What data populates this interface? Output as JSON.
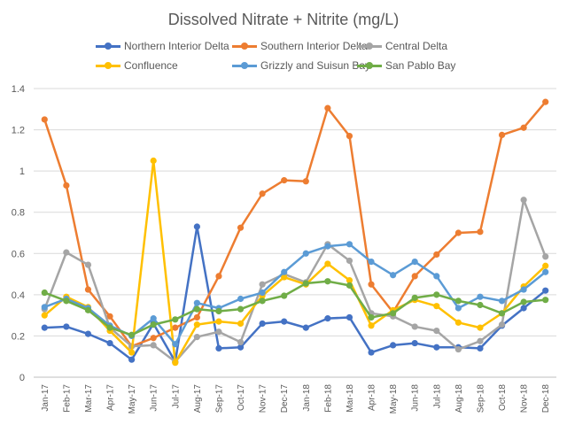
{
  "chart_data": {
    "type": "line",
    "title": "Dissolved Nitrate + Nitrite (mg/L)",
    "xlabel": "",
    "ylabel": "",
    "ylim": [
      0,
      1.4
    ],
    "yticks": [
      "0",
      "0.2",
      "0.4",
      "0.6",
      "0.8",
      "1",
      "1.2",
      "1.4"
    ],
    "grid": "horizontal",
    "legend_position": "top",
    "categories": [
      "Jan-17",
      "Feb-17",
      "Mar-17",
      "Apr-17",
      "May-17",
      "Jun-17",
      "Jul-17",
      "Aug-17",
      "Sep-17",
      "Oct-17",
      "Nov-17",
      "Dec-17",
      "Jan-18",
      "Feb-18",
      "Mar-18",
      "Apr-18",
      "May-18",
      "Jun-18",
      "Jul-18",
      "Aug-18",
      "Sep-18",
      "Oct-18",
      "Nov-18",
      "Dec-18"
    ],
    "series": [
      {
        "name": "Northern Interior Delta",
        "color": "#4472C4",
        "values": [
          0.24,
          0.245,
          0.21,
          0.165,
          0.085,
          0.26,
          0.075,
          0.73,
          0.14,
          0.145,
          0.26,
          0.27,
          0.24,
          0.285,
          0.29,
          0.12,
          0.155,
          0.165,
          0.145,
          0.145,
          0.14,
          0.25,
          0.335,
          0.42
        ]
      },
      {
        "name": "Southern Interior Delta",
        "color": "#ED7D31",
        "values": [
          1.25,
          0.93,
          0.425,
          0.295,
          0.15,
          0.19,
          0.24,
          0.29,
          0.49,
          0.725,
          0.89,
          0.955,
          0.95,
          1.305,
          1.17,
          0.45,
          0.315,
          0.49,
          0.595,
          0.7,
          0.705,
          1.175,
          1.21,
          1.335
        ]
      },
      {
        "name": "Central Delta",
        "color": "#A5A5A5",
        "values": [
          0.33,
          0.605,
          0.545,
          0.24,
          0.15,
          0.155,
          0.075,
          0.195,
          0.22,
          0.17,
          0.45,
          0.5,
          0.46,
          0.645,
          0.565,
          0.31,
          0.295,
          0.245,
          0.225,
          0.135,
          0.175,
          0.255,
          0.86,
          0.585
        ]
      },
      {
        "name": "Confluence",
        "color": "#FFC000",
        "values": [
          0.3,
          0.39,
          0.34,
          0.225,
          0.12,
          1.05,
          0.07,
          0.255,
          0.27,
          0.26,
          0.395,
          0.485,
          0.45,
          0.55,
          0.47,
          0.25,
          0.325,
          0.375,
          0.345,
          0.265,
          0.24,
          0.31,
          0.44,
          0.54
        ]
      },
      {
        "name": "Grizzly and Suisun Bay",
        "color": "#5B9BD5",
        "values": [
          0.34,
          0.38,
          0.335,
          0.25,
          0.2,
          0.285,
          0.16,
          0.36,
          0.335,
          0.38,
          0.41,
          0.51,
          0.6,
          0.635,
          0.645,
          0.56,
          0.495,
          0.56,
          0.49,
          0.335,
          0.39,
          0.37,
          0.425,
          0.51
        ]
      },
      {
        "name": "San Pablo Bay",
        "color": "#70AD47",
        "values": [
          0.41,
          0.37,
          0.325,
          0.24,
          0.205,
          0.255,
          0.28,
          0.33,
          0.32,
          0.33,
          0.37,
          0.395,
          0.455,
          0.465,
          0.445,
          0.29,
          0.31,
          0.385,
          0.4,
          0.37,
          0.35,
          0.31,
          0.365,
          0.375
        ]
      }
    ]
  }
}
